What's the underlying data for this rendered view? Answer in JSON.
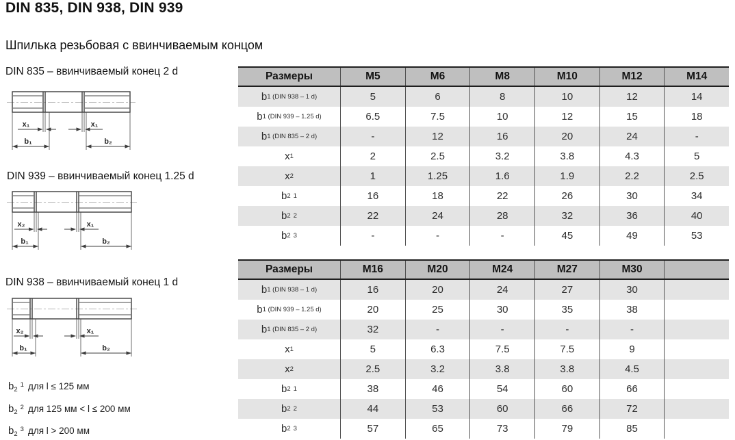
{
  "page": {
    "title": "DIN 835, DIN 938, DIN 939",
    "subtitle": "Шпилька резьбовая с ввинчиваемым концом"
  },
  "figures": [
    {
      "label": "DIN 835 – ввинчиваемый конец 2 d",
      "dims": {
        "x_left": "x₁",
        "x_right": "x₁",
        "b_left": "b₁",
        "b_right": "b₂"
      }
    },
    {
      "label": "DIN 939 – ввинчиваемый конец 1.25 d",
      "dims": {
        "x_left": "x₂",
        "x_right": "x₁",
        "b_left": "b₁",
        "b_right": "b₂"
      }
    },
    {
      "label": "DIN 938 – ввинчиваемый конец 1 d",
      "dims": {
        "x_left": "x₂",
        "x_right": "x₁",
        "b_left": "b₁",
        "b_right": "b₂"
      }
    }
  ],
  "footnotes": [
    {
      "sym": {
        "base": "b",
        "sub": "2",
        "sup": "1"
      },
      "text": "для l ≤ 125 мм"
    },
    {
      "sym": {
        "base": "b",
        "sub": "2",
        "sup": "2"
      },
      "text": "для 125 мм < l ≤ 200 мм"
    },
    {
      "sym": {
        "base": "b",
        "sub": "2",
        "sup": "3"
      },
      "text": "для l > 200 мм"
    }
  ],
  "tables": [
    {
      "columns": [
        "Размеры",
        "M5",
        "M6",
        "M8",
        "M10",
        "M12",
        "M14"
      ],
      "rows": [
        {
          "label": {
            "base": "b",
            "sub": "1 (DIN 938 – 1 d)"
          },
          "values": [
            "5",
            "6",
            "8",
            "10",
            "12",
            "14"
          ]
        },
        {
          "label": {
            "base": "b",
            "sub": "1 (DIN 939 – 1.25 d)"
          },
          "values": [
            "6.5",
            "7.5",
            "10",
            "12",
            "15",
            "18"
          ]
        },
        {
          "label": {
            "base": "b",
            "sub": "1 (DIN 835 – 2 d)"
          },
          "values": [
            "-",
            "12",
            "16",
            "20",
            "24",
            "-"
          ]
        },
        {
          "label": {
            "base": "x",
            "sub": "1"
          },
          "values": [
            "2",
            "2.5",
            "3.2",
            "3.8",
            "4.3",
            "5"
          ]
        },
        {
          "label": {
            "base": "x",
            "sub": "2"
          },
          "values": [
            "1",
            "1.25",
            "1.6",
            "1.9",
            "2.2",
            "2.5"
          ]
        },
        {
          "label": {
            "base": "b",
            "sub": "2",
            "sup": "1"
          },
          "values": [
            "16",
            "18",
            "22",
            "26",
            "30",
            "34"
          ]
        },
        {
          "label": {
            "base": "b",
            "sub": "2",
            "sup": "2"
          },
          "values": [
            "22",
            "24",
            "28",
            "32",
            "36",
            "40"
          ]
        },
        {
          "label": {
            "base": "b",
            "sub": "2",
            "sup": "3"
          },
          "values": [
            "-",
            "-",
            "-",
            "45",
            "49",
            "53"
          ]
        }
      ]
    },
    {
      "columns": [
        "Размеры",
        "M16",
        "M20",
        "M24",
        "M27",
        "M30",
        ""
      ],
      "rows": [
        {
          "label": {
            "base": "b",
            "sub": "1 (DIN 938 – 1 d)"
          },
          "values": [
            "16",
            "20",
            "24",
            "27",
            "30",
            ""
          ]
        },
        {
          "label": {
            "base": "b",
            "sub": "1 (DIN 939 – 1.25 d)"
          },
          "values": [
            "20",
            "25",
            "30",
            "35",
            "38",
            ""
          ]
        },
        {
          "label": {
            "base": "b",
            "sub": "1 (DIN 835 – 2 d)"
          },
          "values": [
            "32",
            "-",
            "-",
            "-",
            "-",
            ""
          ]
        },
        {
          "label": {
            "base": "x",
            "sub": "1"
          },
          "values": [
            "5",
            "6.3",
            "7.5",
            "7.5",
            "9",
            ""
          ]
        },
        {
          "label": {
            "base": "x",
            "sub": "2"
          },
          "values": [
            "2.5",
            "3.2",
            "3.8",
            "3.8",
            "4.5",
            ""
          ]
        },
        {
          "label": {
            "base": "b",
            "sub": "2",
            "sup": "1"
          },
          "values": [
            "38",
            "46",
            "54",
            "60",
            "66",
            ""
          ]
        },
        {
          "label": {
            "base": "b",
            "sub": "2",
            "sup": "2"
          },
          "values": [
            "44",
            "53",
            "60",
            "66",
            "72",
            ""
          ]
        },
        {
          "label": {
            "base": "b",
            "sub": "2",
            "sup": "3"
          },
          "values": [
            "57",
            "65",
            "73",
            "79",
            "85",
            ""
          ]
        }
      ]
    }
  ],
  "colors": {
    "table_header_bg": "#bfbfbf",
    "table_alt_row_bg": "#e4e4e4",
    "table_border_dark": "#1f1f1f",
    "table_grid_line": "#4f4f4f",
    "text": "#2d2d2d"
  }
}
